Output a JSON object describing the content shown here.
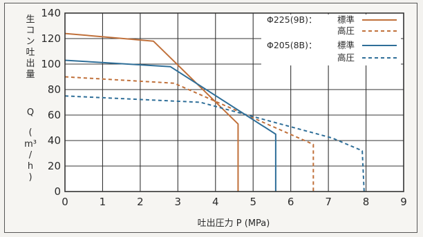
{
  "chart_data": {
    "type": "line",
    "ylabel_lines": [
      "生",
      "コ",
      "ン",
      "吐",
      "出",
      "量"
    ],
    "ylabel_q": "Q",
    "ylabel_unit_lines": [
      "(",
      "m³",
      "/",
      "h",
      ")"
    ],
    "xlabel": "吐出圧力 P (MPa)",
    "xlim": [
      0,
      9
    ],
    "ylim": [
      0,
      140
    ],
    "x_ticks": [
      "0",
      "1",
      "2",
      "3",
      "4",
      "5",
      "6",
      "7",
      "8",
      "9"
    ],
    "y_ticks": [
      "0",
      "20",
      "40",
      "60",
      "80",
      "100",
      "120",
      "140"
    ],
    "grid": true,
    "legend_position": "top-right",
    "legend": {
      "group1": "Φ225(9B)：",
      "group2": "Φ205(8B)：",
      "standard": "標準",
      "high": "高圧"
    },
    "colors": {
      "phi225": "#c0703a",
      "phi205": "#2e6e98"
    },
    "series": [
      {
        "key": "phi225_standard",
        "dash": false,
        "x": [
          0,
          2.35,
          4.6,
          4.6
        ],
        "y": [
          124,
          118,
          53,
          0
        ]
      },
      {
        "key": "phi225_high",
        "dash": true,
        "x": [
          0,
          2.9,
          6.6,
          6.6
        ],
        "y": [
          90,
          85,
          37,
          0
        ]
      },
      {
        "key": "phi205_standard",
        "dash": false,
        "x": [
          0,
          2.8,
          5.6,
          5.6
        ],
        "y": [
          103,
          98,
          45,
          0
        ]
      },
      {
        "key": "phi205_high",
        "dash": true,
        "x": [
          0,
          3.6,
          7.1,
          7.9,
          7.95
        ],
        "y": [
          75,
          70,
          42,
          32,
          0
        ]
      }
    ]
  }
}
